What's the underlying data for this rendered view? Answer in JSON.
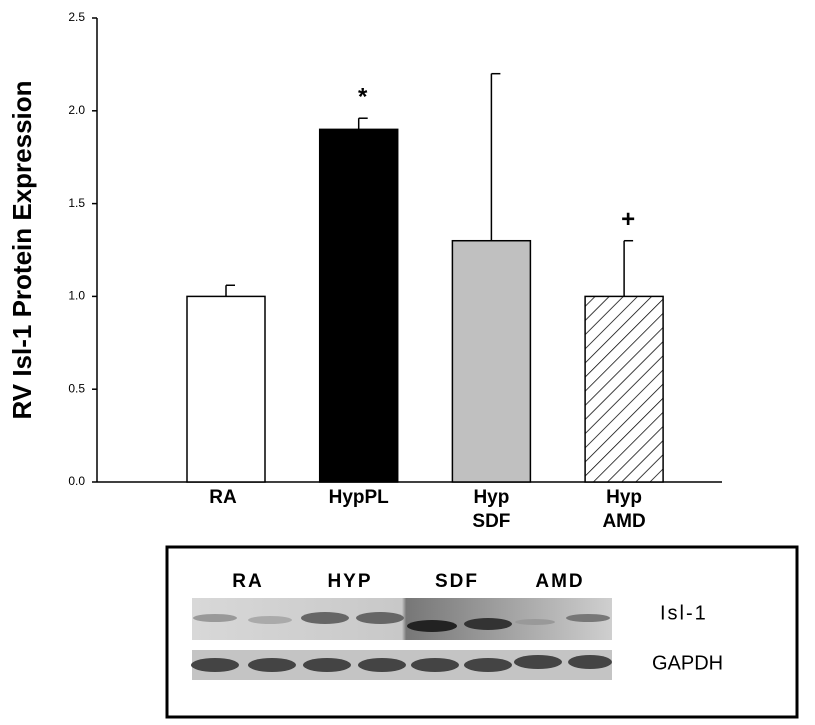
{
  "chart_data": {
    "type": "bar",
    "ylabel": "RV Isl-1 Protein Expression",
    "categories": [
      "RA",
      "HypPL",
      "Hyp\nSDF",
      "Hyp\nAMD"
    ],
    "values": [
      1.0,
      1.9,
      1.3,
      1.0
    ],
    "errors": [
      0.06,
      0.06,
      0.9,
      0.3
    ],
    "fills": [
      "#ffffff",
      "#000000",
      "#c0c0c0",
      "hatched"
    ],
    "annotations": [
      null,
      "*",
      null,
      "+"
    ],
    "ylim": [
      0,
      2.5
    ],
    "yticks": [
      {
        "value": 0,
        "label": "0.0"
      },
      0.5,
      {
        "value": 1,
        "label": "1.0"
      },
      1.5,
      {
        "value": 2,
        "label": "2.0"
      },
      2.5
    ]
  },
  "blot": {
    "groups": [
      "RA",
      "HYP",
      "SDF",
      "AMD"
    ],
    "rows": [
      "Isl-1",
      "GAPDH"
    ]
  }
}
